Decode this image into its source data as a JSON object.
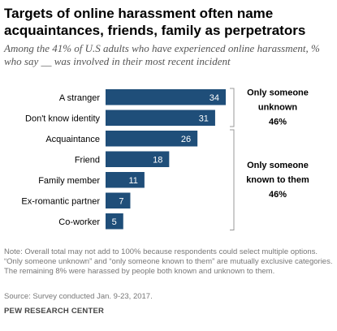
{
  "header": {
    "title": "Targets of online harassment often name acquaintances, friends, family as perpetrators",
    "subtitle": "Among the 41% of U.S adults who have experienced online harassment, % who say __ was involved in their most recent incident"
  },
  "chart_data": {
    "type": "bar",
    "orientation": "horizontal",
    "categories": [
      "A stranger",
      "Don't know identity",
      "Acquaintance",
      "Friend",
      "Family member",
      "Ex-romantic partner",
      "Co-worker"
    ],
    "values": [
      34,
      31,
      26,
      18,
      11,
      7,
      5
    ],
    "bar_color": "#1f4e79",
    "xlim": [
      0,
      34
    ],
    "groups": [
      {
        "line1": "Only someone",
        "line2": "unknown",
        "value": "46%",
        "range": [
          0,
          1
        ]
      },
      {
        "line1": "Only someone",
        "line2": "known to them",
        "value": "46%",
        "range": [
          2,
          6
        ]
      }
    ]
  },
  "footer": {
    "note": "Note: Overall total may not add to 100% because respondents could select multiple options. “Only someone unknown” and “only someone known to them” are mutually exclusive categories. The remaining 8% were harassed by people both known and unknown to them.",
    "source": "Source: Survey conducted Jan. 9-23, 2017.",
    "brand": "PEW RESEARCH CENTER"
  }
}
